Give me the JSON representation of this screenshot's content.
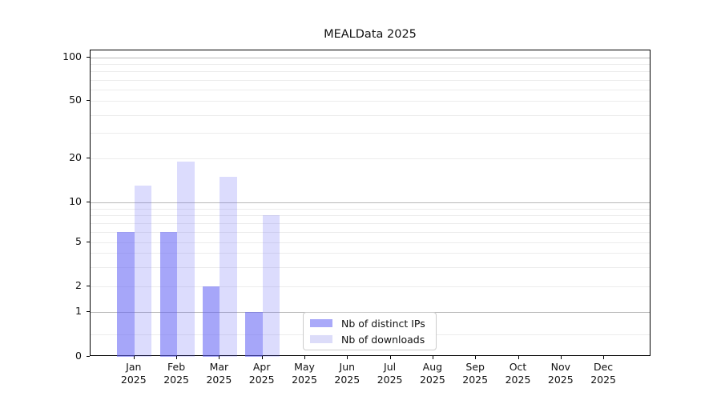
{
  "chart_data": {
    "type": "bar",
    "title": "MEALData 2025",
    "categories": [
      "Jan 2025",
      "Feb 2025",
      "Mar 2025",
      "Apr 2025",
      "May 2025",
      "Jun 2025",
      "Jul 2025",
      "Aug 2025",
      "Sep 2025",
      "Oct 2025",
      "Nov 2025",
      "Dec 2025"
    ],
    "series": [
      {
        "name": "Nb of distinct IPs",
        "color": "rgba(97,97,245,0.56)",
        "solid_color": "#a9a9f9",
        "values": [
          6,
          6,
          2,
          1,
          0,
          0,
          0,
          0,
          0,
          0,
          0,
          0
        ]
      },
      {
        "name": "Nb of downloads",
        "color": "rgba(97,97,245,0.22)",
        "solid_color": "#dcdcf9",
        "values": [
          13,
          19,
          15,
          8,
          0,
          0,
          0,
          0,
          0,
          0,
          0,
          0
        ]
      }
    ],
    "xlabel": "",
    "ylabel": "",
    "y_axis": {
      "scale": "symlog",
      "range": [
        0,
        100
      ],
      "ticks": [
        0,
        1,
        2,
        5,
        10,
        20,
        50,
        100
      ],
      "major_gridlines": [
        1,
        10,
        100
      ],
      "minor_gridlines": [
        0.5,
        3,
        4,
        6,
        7,
        8,
        9,
        30,
        40,
        60,
        70,
        80,
        90
      ]
    },
    "grid": true,
    "legend_position": "lower center",
    "colors": {
      "grid_major": "#b9b9b9",
      "grid_minor": "#ececec",
      "axis": "#000000",
      "background": "#ffffff",
      "legend_border": "#cccccc"
    }
  }
}
